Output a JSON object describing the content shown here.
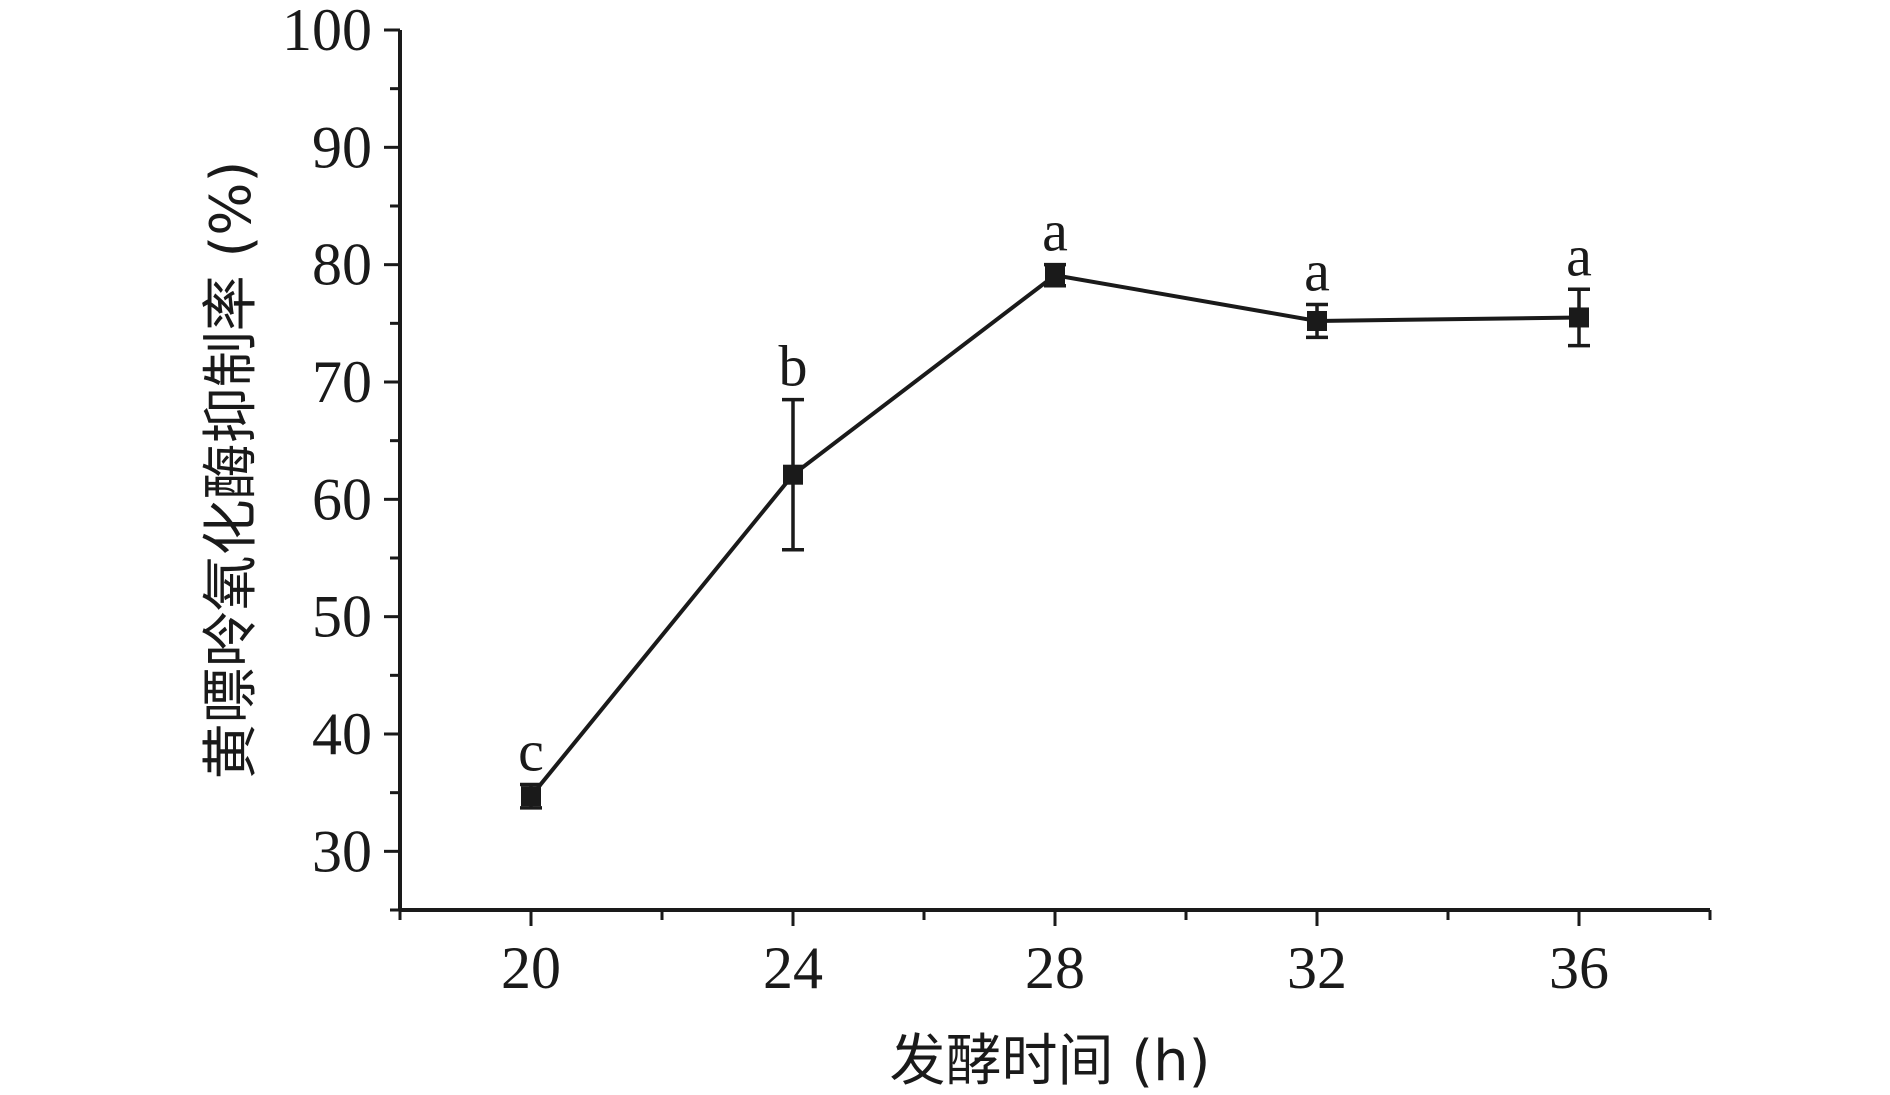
{
  "chart_data": {
    "type": "line",
    "xlabel": "发酵时间 (h)",
    "ylabel": "黄嘌呤氧化酶抑制率 (%)",
    "x_ticks": [
      20,
      24,
      28,
      32,
      36
    ],
    "y_ticks": [
      30,
      40,
      50,
      60,
      70,
      80,
      90,
      100
    ],
    "xlim": [
      18,
      38
    ],
    "ylim": [
      25,
      100
    ],
    "grid": false,
    "series": [
      {
        "x": [
          20,
          24,
          28,
          32,
          36
        ],
        "y": [
          34.7,
          62.1,
          79.1,
          75.2,
          75.5
        ],
        "error": [
          1.0,
          6.4,
          0.9,
          1.4,
          2.4
        ],
        "labels": [
          "c",
          "b",
          "a",
          "a",
          "a"
        ]
      }
    ]
  }
}
